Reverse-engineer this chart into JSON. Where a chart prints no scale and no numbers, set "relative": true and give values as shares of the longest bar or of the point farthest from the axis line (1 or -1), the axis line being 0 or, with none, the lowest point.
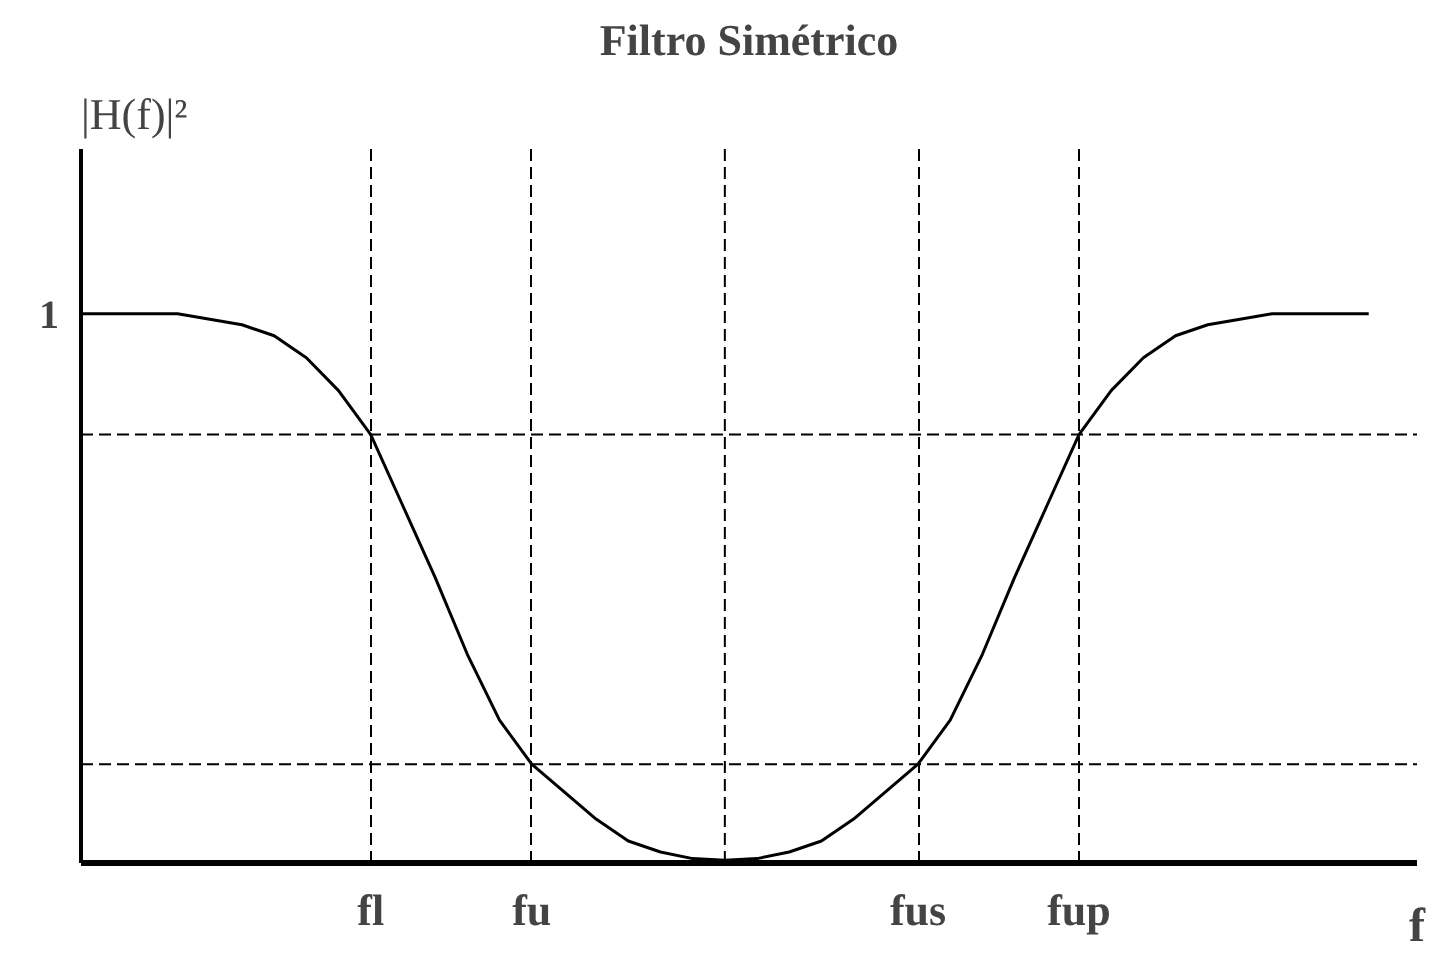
{
  "chart_data": {
    "type": "line",
    "title": "Filtro Simétrico",
    "xlabel": "f",
    "ylabel": "|H(f)|²",
    "relative": true,
    "annotations": [
      "1"
    ],
    "categories": [
      null,
      null,
      null,
      null,
      null,
      null,
      null,
      null,
      null,
      "fl",
      null,
      null,
      null,
      null,
      "fu",
      null,
      null,
      null,
      null,
      null,
      null,
      null,
      null,
      null,
      null,
      null,
      "fus",
      null,
      null,
      null,
      null,
      "fup",
      null,
      null,
      null,
      null,
      null,
      null,
      null,
      null,
      null
    ],
    "series": [
      {
        "color": "#000000",
        "values": [
          1,
          1,
          1,
          1,
          0.99,
          0.98,
          0.96,
          0.92,
          0.86,
          0.78,
          0.65,
          0.52,
          0.38,
          0.26,
          0.18,
          0.13,
          0.08,
          0.04,
          0.02,
          0.008,
          0.005,
          0.008,
          0.02,
          0.04,
          0.08,
          0.13,
          0.18,
          0.26,
          0.38,
          0.52,
          0.65,
          0.78,
          0.86,
          0.92,
          0.96,
          0.98,
          0.99,
          1,
          1,
          1,
          1
        ]
      }
    ],
    "ref_lines": [
      {
        "axis": "y",
        "value": 0.78,
        "line_style": "dashed"
      },
      {
        "axis": "y",
        "value": 0.18,
        "line_style": "dashed"
      }
    ],
    "grid": "x",
    "line_style": "solid",
    "marker": "none"
  }
}
